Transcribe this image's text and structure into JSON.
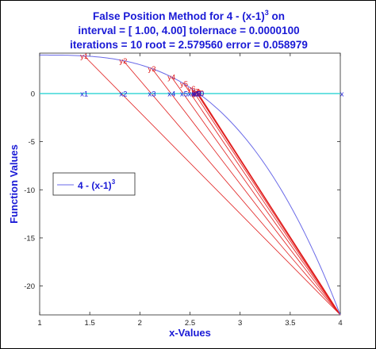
{
  "chart_data": {
    "type": "line",
    "title_lines": [
      [
        "False Position Method for 4 - (x-1)",
        "3",
        " on"
      ],
      [
        "interval = [ 1.00, 4.00]    tolernace =  0.0000100"
      ],
      [
        "iterations =  10    root = 2.579560    error = 0.058979"
      ]
    ],
    "xlabel": "x-Values",
    "ylabel": "Function Values",
    "xlim": [
      1,
      4
    ],
    "ylim": [
      -23,
      4.2
    ],
    "xticks": [
      1,
      1.5,
      2,
      2.5,
      3,
      3.5,
      4
    ],
    "xtick_labels": [
      "1",
      "1.5",
      "2",
      "2.5",
      "3",
      "3.5",
      "4"
    ],
    "yticks": [
      0,
      -5,
      -10,
      -15,
      -20
    ],
    "ytick_labels": [
      "0",
      "-5",
      "-10",
      "-15",
      "-20"
    ],
    "grid": false,
    "function": {
      "name": "4 - (x-1)",
      "name_sup": "3",
      "x_range": [
        1,
        4
      ],
      "color": "#6a6ae8"
    },
    "zero_line": {
      "y": 0,
      "x_range": [
        1,
        4
      ],
      "color": "#2fd3d3"
    },
    "interval_b": {
      "x": 4,
      "y": -23
    },
    "iterates": [
      {
        "ylabel": "y1",
        "xlabel": "x1",
        "x": 1.4444,
        "y": 3.9122
      },
      {
        "ylabel": "y2",
        "xlabel": "x2",
        "x": 1.8343,
        "y": 3.4191
      },
      {
        "ylabel": "y3",
        "xlabel": "x3",
        "x": 2.1206,
        "y": 2.5947
      },
      {
        "ylabel": "y4",
        "xlabel": "x4",
        "x": 2.3159,
        "y": 1.7199
      },
      {
        "ylabel": "y5",
        "xlabel": "x5",
        "x": 2.4404,
        "y": 1.0137
      },
      {
        "ylabel": "y6",
        "xlabel": "x6",
        "x": 2.5156,
        "y": 0.5184
      },
      {
        "ylabel": "y7",
        "xlabel": "x7",
        "x": 2.5546,
        "y": 0.2435
      },
      {
        "ylabel": "y8",
        "xlabel": "x8",
        "x": 2.5683,
        "y": 0.1425
      },
      {
        "ylabel": "y9",
        "xlabel": "x9",
        "x": 2.5755,
        "y": 0.088
      },
      {
        "ylabel": "y10",
        "xlabel": "x10",
        "x": 2.5796,
        "y": 0.059
      }
    ],
    "end_label": "x",
    "legend": {
      "position": "middle-left",
      "entries": [
        "4 - (x-1)"
      ],
      "entry_sup": "3"
    },
    "colors": {
      "title": "#1a1ad6",
      "secant": "#e01b1b",
      "labels_x": "#1a1ad6",
      "labels_y": "#e01b1b"
    }
  }
}
